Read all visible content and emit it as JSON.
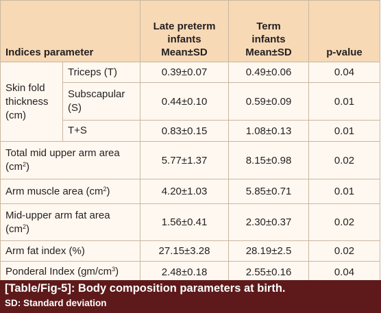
{
  "headers": {
    "indices": "Indices parameter",
    "late_preterm": [
      "Late preterm",
      "infants",
      "Mean±SD"
    ],
    "term": [
      "Term",
      "infants",
      "Mean±SD"
    ],
    "pvalue": "p-value"
  },
  "skinfold": {
    "label": [
      "Skin fold",
      "thickness",
      "(cm)"
    ],
    "rows": [
      {
        "sub": [
          "Triceps (T)"
        ],
        "late": "0.39±0.07",
        "term": "0.49±0.06",
        "p": "0.04"
      },
      {
        "sub": [
          "Subscapular",
          "(S)"
        ],
        "late": "0.44±0.10",
        "term": "0.59±0.09",
        "p": "0.01"
      },
      {
        "sub": [
          "T+S"
        ],
        "late": "0.83±0.15",
        "term": "1.08±0.13",
        "p": "0.01"
      }
    ]
  },
  "rows": [
    {
      "label": "Total mid upper arm area",
      "label2": "(cm",
      "sup": "2",
      "tail": ")",
      "late": "5.77±1.37",
      "term": "8.15±0.98",
      "p": "0.02"
    },
    {
      "label": "Arm muscle area (cm",
      "sup": "2",
      "tail": ")",
      "late": "4.20±1.03",
      "term": "5.85±0.71",
      "p": "0.01"
    },
    {
      "label": "Mid-upper arm fat area",
      "label2": "(cm",
      "sup": "2",
      "tail": ")",
      "late": "1.56±0.41",
      "term": "2.30±0.37",
      "p": "0.02"
    },
    {
      "label": "Arm fat index (%)",
      "late": "27.15±3.28",
      "term": "28.19±2.5",
      "p": "0.02"
    },
    {
      "label": "Ponderal Index (gm/cm",
      "sup": "3",
      "tail": ")",
      "late": "2.48±0.18",
      "term": "2.55±0.16",
      "p": "0.04"
    }
  ],
  "caption": {
    "title": "[Table/Fig-5]: Body composition parameters at birth.",
    "note": "SD: Standard deviation"
  },
  "colors": {
    "header_bg": "#f7d9b6",
    "body_bg": "#fff8f0",
    "caption_bg": "#5e1a1b",
    "border": "#c9b7a0"
  }
}
